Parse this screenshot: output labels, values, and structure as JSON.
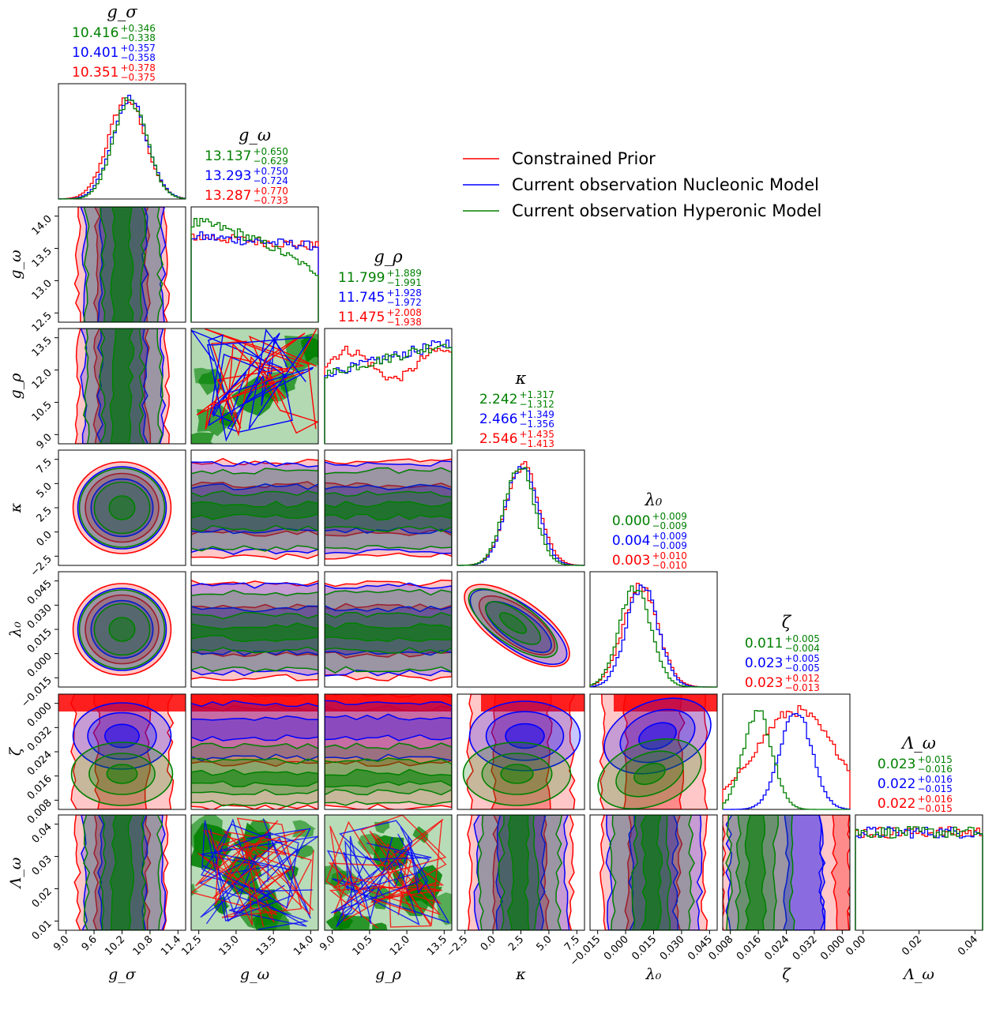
{
  "chart_data": {
    "type": "corner",
    "parameters": [
      {
        "key": "g_sigma",
        "title": "g_σ",
        "label": "g_σ",
        "range": [
          8.95,
          11.55
        ],
        "ticks": [
          "9.0",
          "9.6",
          "10.2",
          "10.8",
          "11.4"
        ],
        "summary": [
          {
            "series": "Current observation Hyperonic Model",
            "median": "10.416",
            "plus": "+0.346",
            "minus": "−0.338"
          },
          {
            "series": "Current observation Nucleonic Model",
            "median": "10.401",
            "plus": "+0.357",
            "minus": "−0.358"
          },
          {
            "series": "Constrained Prior",
            "median": "10.351",
            "plus": "+0.378",
            "minus": "−0.375"
          }
        ]
      },
      {
        "key": "g_omega",
        "title": "g_ω",
        "label": "g_ω",
        "range": [
          12.3,
          14.4
        ],
        "ticks": [
          "12.5",
          "13.0",
          "13.5",
          "14.0"
        ],
        "summary": [
          {
            "series": "Current observation Hyperonic Model",
            "median": "13.137",
            "plus": "+0.650",
            "minus": "−0.629"
          },
          {
            "series": "Current observation Nucleonic Model",
            "median": "13.293",
            "plus": "+0.750",
            "minus": "−0.724"
          },
          {
            "series": "Constrained Prior",
            "median": "13.287",
            "plus": "+0.770",
            "minus": "−0.733"
          }
        ]
      },
      {
        "key": "g_rho",
        "title": "g_ρ",
        "label": "g_ρ",
        "range": [
          8.8,
          14.5
        ],
        "ticks": [
          "9.0",
          "10.5",
          "12.0",
          "13.5"
        ],
        "summary": [
          {
            "series": "Current observation Hyperonic Model",
            "median": "11.799",
            "plus": "+1.889",
            "minus": "−1.991"
          },
          {
            "series": "Current observation Nucleonic Model",
            "median": "11.745",
            "plus": "+1.928",
            "minus": "−1.972"
          },
          {
            "series": "Constrained Prior",
            "median": "11.475",
            "plus": "+2.008",
            "minus": "−1.938"
          }
        ]
      },
      {
        "key": "kappa",
        "title": "κ",
        "label": "κ",
        "range": [
          -3.2,
          8.0
        ],
        "ticks": [
          "−2.5",
          "0.0",
          "2.5",
          "5.0",
          "7.5"
        ],
        "summary": [
          {
            "series": "Current observation Hyperonic Model",
            "median": "2.242",
            "plus": "+1.317",
            "minus": "−1.312"
          },
          {
            "series": "Current observation Nucleonic Model",
            "median": "2.466",
            "plus": "+1.349",
            "minus": "−1.356"
          },
          {
            "series": "Constrained Prior",
            "median": "2.546",
            "plus": "+1.435",
            "minus": "−1.413"
          }
        ]
      },
      {
        "key": "lambda_0",
        "title": "λ₀",
        "label": "λ₀",
        "range": [
          -0.026,
          0.047
        ],
        "ticks": [
          "−0.015",
          "0.000",
          "0.015",
          "0.030",
          "0.045"
        ],
        "summary": [
          {
            "series": "Current observation Hyperonic Model",
            "median": "0.000",
            "plus": "+0.009",
            "minus": "−0.009"
          },
          {
            "series": "Current observation Nucleonic Model",
            "median": "0.004",
            "plus": "+0.009",
            "minus": "−0.009"
          },
          {
            "series": "Constrained Prior",
            "median": "0.003",
            "plus": "+0.010",
            "minus": "−0.010"
          }
        ]
      },
      {
        "key": "zeta",
        "title": "ζ",
        "label": "ζ",
        "range": [
          0.0,
          0.04
        ],
        "ticks": [
          "0.008",
          "0.016",
          "0.024",
          "0.032",
          "0.000"
        ],
        "summary": [
          {
            "series": "Current observation Hyperonic Model",
            "median": "0.011",
            "plus": "+0.005",
            "minus": "−0.004"
          },
          {
            "series": "Current observation Nucleonic Model",
            "median": "0.023",
            "plus": "+0.005",
            "minus": "−0.005"
          },
          {
            "series": "Constrained Prior",
            "median": "0.023",
            "plus": "+0.012",
            "minus": "−0.013"
          }
        ]
      },
      {
        "key": "Lambda_omega",
        "title": "Λ_ω",
        "label": "Λ_ω",
        "range": [
          0.0,
          0.04
        ],
        "ticks": [
          "0.01",
          "0.02",
          "0.03",
          "0.04"
        ],
        "xticks": [
          "0.00",
          "0.02",
          "0.04"
        ],
        "summary": [
          {
            "series": "Current observation Hyperonic Model",
            "median": "0.023",
            "plus": "+0.015",
            "minus": "−0.016"
          },
          {
            "series": "Current observation Nucleonic Model",
            "median": "0.022",
            "plus": "+0.016",
            "minus": "−0.015"
          },
          {
            "series": "Constrained Prior",
            "median": "0.022",
            "plus": "+0.016",
            "minus": "−0.015"
          }
        ]
      }
    ],
    "series": [
      {
        "name": "Constrained Prior",
        "color": "#ff0000"
      },
      {
        "name": "Current observation Nucleonic Model",
        "color": "#0000ff"
      },
      {
        "name": "Current observation Hyperonic Model",
        "color": "#008000"
      }
    ],
    "marginals": {
      "g_sigma": {
        "Constrained Prior": {
          "mean": 10.351,
          "sd": 0.376
        },
        "Current observation Nucleonic Model": {
          "mean": 10.401,
          "sd": 0.357
        },
        "Current observation Hyperonic Model": {
          "mean": 10.416,
          "sd": 0.342
        }
      },
      "kappa": {
        "Constrained Prior": {
          "mean": 2.546,
          "sd": 1.424
        },
        "Current observation Nucleonic Model": {
          "mean": 2.466,
          "sd": 1.352
        },
        "Current observation Hyperonic Model": {
          "mean": 2.242,
          "sd": 1.315
        }
      },
      "lambda_0": {
        "Constrained Prior": {
          "mean": 0.003,
          "sd": 0.01
        },
        "Current observation Nucleonic Model": {
          "mean": 0.004,
          "sd": 0.009
        },
        "Current observation Hyperonic Model": {
          "mean": 0.0,
          "sd": 0.009
        }
      },
      "zeta": {
        "Constrained Prior": {
          "mean": 0.023,
          "sd": 0.0125
        },
        "Current observation Nucleonic Model": {
          "mean": 0.023,
          "sd": 0.005
        },
        "Current observation Hyperonic Model": {
          "mean": 0.011,
          "sd": 0.0045
        }
      }
    },
    "legend_position": "top-right"
  }
}
